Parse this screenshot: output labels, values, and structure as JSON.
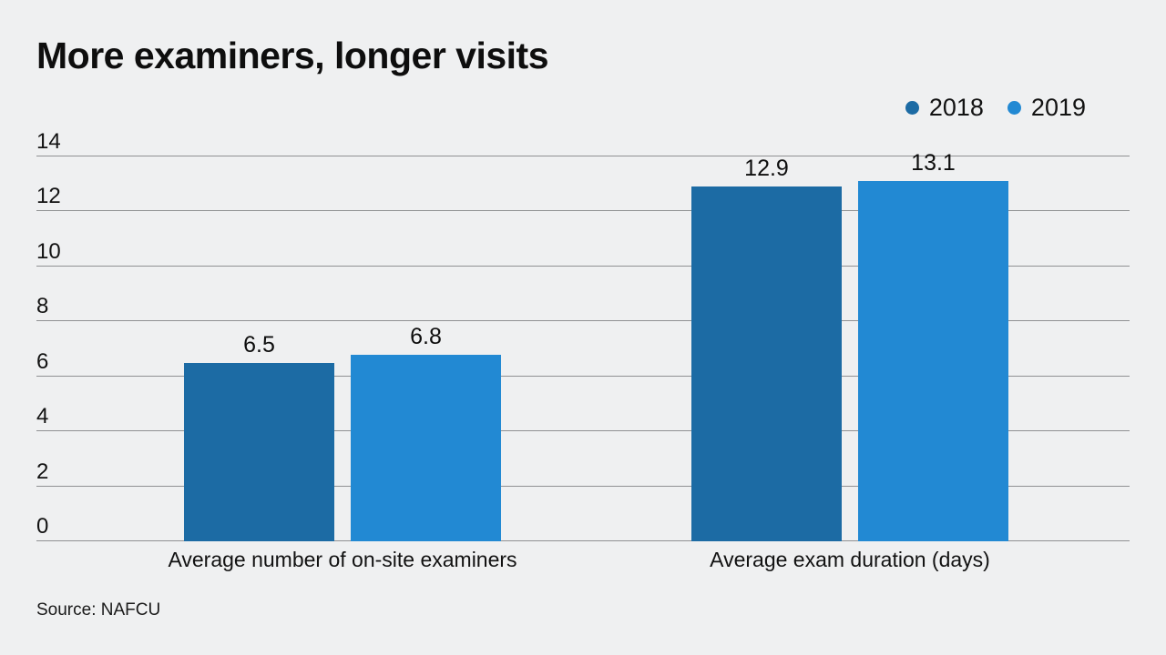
{
  "title": "More examiners, longer visits",
  "source": "Source: NAFCU",
  "chart_data": {
    "type": "bar",
    "title": "More examiners, longer visits",
    "categories": [
      "Average number of on-site examiners",
      "Average exam duration (days)"
    ],
    "series": [
      {
        "name": "2018",
        "color": "#1c6ba4",
        "values": [
          6.5,
          12.9
        ]
      },
      {
        "name": "2019",
        "color": "#2289d3",
        "values": [
          6.8,
          13.1
        ]
      }
    ],
    "value_labels": [
      [
        "6.5",
        "12.9"
      ],
      [
        "6.8",
        "13.1"
      ]
    ],
    "xlabel": "",
    "ylabel": "",
    "ylim": [
      0,
      14
    ],
    "ytick_step": 2,
    "yticks": [
      0,
      2,
      4,
      6,
      8,
      10,
      12,
      14
    ],
    "grid": true,
    "legend_position": "top-right",
    "source_note": "Source: NAFCU"
  },
  "colors": {
    "background": "#eff0f1",
    "gridline": "#8f9193",
    "text": "#121212",
    "series_2018": "#1c6ba4",
    "series_2019": "#2289d3"
  }
}
